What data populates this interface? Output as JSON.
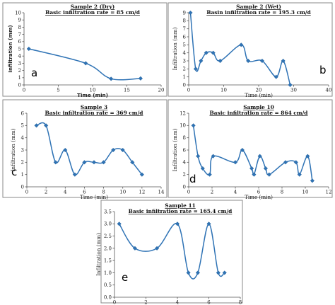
{
  "chart_data": [
    {
      "type": "line",
      "title": "Sample 2 (Dry)",
      "subtitle": "Basic infiltration rate = 85 cm/d",
      "xlabel": "Time (min)",
      "ylabel": "Infiltration (mm)",
      "panel_label": "a",
      "xlim": [
        0,
        20
      ],
      "xticks": [
        0,
        5,
        10,
        15,
        20
      ],
      "ylim": [
        0,
        10
      ],
      "yticks": [
        0,
        1,
        2,
        3,
        4,
        5,
        6,
        7,
        8,
        9,
        10
      ],
      "grid": false,
      "x": [
        0.7,
        9,
        12.7,
        17
      ],
      "y": [
        5,
        3,
        0.85,
        0.9
      ],
      "series_color": "#2f73b5"
    },
    {
      "type": "line",
      "title": "Sample 2 (Wet)",
      "subtitle": "Basin infiltration rate = 195.3 cm/d",
      "xlabel": "Time (min)",
      "ylabel": "Infiltration (mm)",
      "panel_label": "b",
      "xlim": [
        0,
        40
      ],
      "xticks": [
        0,
        10,
        20,
        30,
        40
      ],
      "ylim": [
        0,
        9
      ],
      "yticks": [
        0,
        1,
        2,
        3,
        4,
        5,
        6,
        7,
        8,
        9
      ],
      "grid": false,
      "x": [
        0.5,
        2,
        3.5,
        5,
        7,
        9,
        15,
        17,
        21,
        25,
        27,
        29
      ],
      "y": [
        9,
        2,
        3,
        4,
        4,
        3,
        5,
        3,
        3,
        1,
        3,
        0
      ],
      "series_color": "#2f73b5"
    },
    {
      "type": "line",
      "title": "Sample 3",
      "subtitle": "Basic infiltration rate = 369 cm/d",
      "xlabel": "Time (min)",
      "ylabel": "Infiltration (mm)",
      "panel_label": "c",
      "xlim": [
        0,
        14
      ],
      "xticks": [
        0,
        2,
        4,
        6,
        8,
        10,
        12,
        14
      ],
      "ylim": [
        0,
        6
      ],
      "yticks": [
        0,
        1,
        2,
        3,
        4,
        5,
        6
      ],
      "grid": false,
      "x": [
        1,
        2,
        3,
        4,
        5,
        6,
        7,
        8,
        9,
        10,
        11,
        12
      ],
      "y": [
        5,
        5,
        2,
        3,
        1,
        2,
        2,
        2,
        3,
        3,
        2,
        1
      ],
      "series_color": "#2f73b5"
    },
    {
      "type": "line",
      "title": "Sample 10",
      "subtitle": "Basic infiltration rate = 864 cm/d",
      "xlabel": "Time (min)",
      "ylabel": "Infiltration (mm)",
      "panel_label": "d",
      "xlim": [
        0,
        12
      ],
      "xticks": [
        0,
        2,
        4,
        6,
        8,
        10,
        12
      ],
      "ylim": [
        0,
        12
      ],
      "yticks": [
        0,
        2,
        4,
        6,
        8,
        10,
        12
      ],
      "grid": false,
      "x": [
        0.4,
        0.8,
        1.2,
        1.8,
        2.1,
        4,
        4.6,
        5.4,
        5.6,
        6.1,
        6.6,
        6.9,
        8.3,
        9.2,
        9.5,
        10.2,
        10.6
      ],
      "y": [
        10,
        5,
        3,
        2,
        5,
        4,
        6,
        3,
        2,
        5,
        3,
        2,
        4,
        4,
        2,
        5,
        1
      ],
      "series_color": "#2f73b5"
    },
    {
      "type": "line",
      "title": "Sample 11",
      "subtitle": "Basic infiltration rate = 165.4 cm/d",
      "xlabel": "Time (min)",
      "ylabel": "Infiltration (mm)",
      "panel_label": "e",
      "xlim": [
        0,
        8
      ],
      "xticks": [
        0,
        2,
        4,
        6,
        8
      ],
      "ylim": [
        0,
        3.5
      ],
      "yticks": [
        0,
        0.5,
        1,
        1.5,
        2,
        2.5,
        3,
        3.5
      ],
      "grid": false,
      "x": [
        0.3,
        1.3,
        2.7,
        4,
        4.7,
        5.3,
        6,
        6.6,
        7
      ],
      "y": [
        3,
        2,
        2,
        3,
        1,
        1,
        3,
        1,
        1
      ],
      "series_color": "#2f73b5"
    }
  ]
}
